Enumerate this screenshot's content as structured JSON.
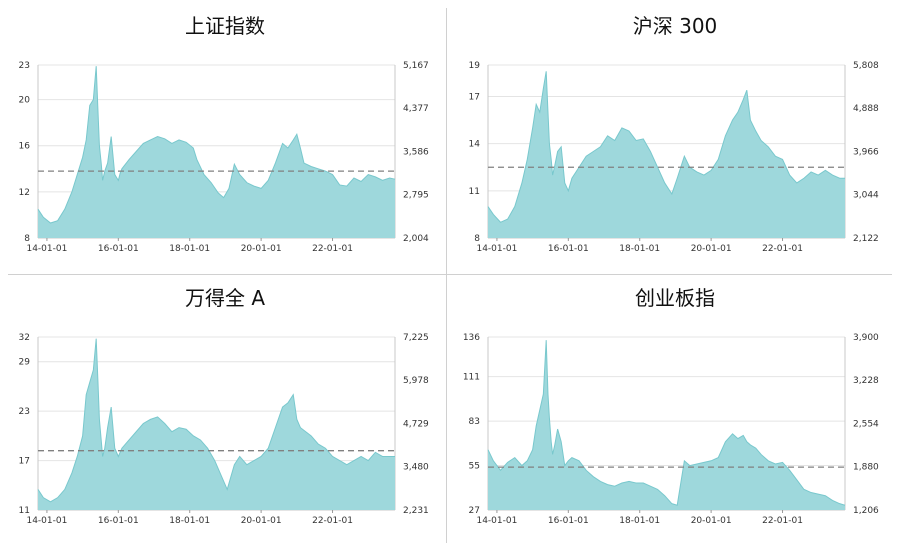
{
  "colors": {
    "area": "#9ed8dc",
    "line": "#79c8cd",
    "median": "#808080",
    "grid": "#e4e4e4"
  },
  "chart_data": [
    {
      "type": "area",
      "title": "上证指数",
      "x_ticks": [
        "14-01-01",
        "16-01-01",
        "18-01-01",
        "20-01-01",
        "22-01-01"
      ],
      "x_range": [
        2013.75,
        2023.75
      ],
      "ylim_left": [
        8,
        23
      ],
      "left_ticks": [
        "8",
        "12",
        "16",
        "20",
        "23"
      ],
      "ylim_right": [
        2004,
        5167
      ],
      "right_ticks": [
        "2,004",
        "2,795",
        "3,586",
        "4,377",
        "5,167"
      ],
      "median": 13.8,
      "x": [
        2013.75,
        2013.9,
        2014.1,
        2014.3,
        2014.5,
        2014.7,
        2014.85,
        2015.0,
        2015.1,
        2015.2,
        2015.3,
        2015.38,
        2015.43,
        2015.47,
        2015.52,
        2015.56,
        2015.62,
        2015.7,
        2015.8,
        2015.9,
        2016.0,
        2016.05,
        2016.1,
        2016.15,
        2016.3,
        2016.5,
        2016.7,
        2016.9,
        2017.1,
        2017.3,
        2017.5,
        2017.7,
        2017.9,
        2018.1,
        2018.2,
        2018.4,
        2018.6,
        2018.8,
        2018.95,
        2019.1,
        2019.25,
        2019.4,
        2019.6,
        2019.8,
        2020.0,
        2020.2,
        2020.4,
        2020.6,
        2020.75,
        2020.9,
        2021.0,
        2021.1,
        2021.2,
        2021.4,
        2021.6,
        2021.8,
        2022.0,
        2022.2,
        2022.4,
        2022.6,
        2022.8,
        2023.0,
        2023.2,
        2023.4,
        2023.6,
        2023.75
      ],
      "y": [
        10.5,
        9.8,
        9.3,
        9.5,
        10.5,
        12.0,
        13.5,
        15.0,
        16.5,
        19.5,
        20.0,
        22.9,
        19.0,
        16.0,
        14.5,
        13.0,
        13.8,
        14.5,
        16.8,
        13.5,
        13.0,
        13.6,
        14.0,
        14.2,
        14.8,
        15.5,
        16.2,
        16.5,
        16.8,
        16.6,
        16.2,
        16.5,
        16.3,
        15.8,
        14.8,
        13.5,
        12.8,
        11.9,
        11.5,
        12.3,
        14.4,
        13.5,
        12.8,
        12.5,
        12.3,
        13.0,
        14.5,
        16.2,
        15.8,
        16.5,
        17.0,
        15.8,
        14.5,
        14.2,
        14.0,
        13.8,
        13.5,
        12.6,
        12.5,
        13.2,
        12.9,
        13.5,
        13.3,
        13.0,
        13.2,
        13.1
      ]
    },
    {
      "type": "area",
      "title": "沪深 300",
      "x_ticks": [
        "14-01-01",
        "16-01-01",
        "18-01-01",
        "20-01-01",
        "22-01-01"
      ],
      "x_range": [
        2013.75,
        2023.75
      ],
      "ylim_left": [
        8,
        19
      ],
      "left_ticks": [
        "8",
        "11",
        "14",
        "17",
        "19"
      ],
      "ylim_right": [
        2122,
        5808
      ],
      "right_ticks": [
        "2,122",
        "3,044",
        "3,966",
        "4,888",
        "5,808"
      ],
      "median": 12.5,
      "x": [
        2013.75,
        2013.9,
        2014.1,
        2014.3,
        2014.5,
        2014.7,
        2014.85,
        2015.0,
        2015.1,
        2015.2,
        2015.3,
        2015.38,
        2015.43,
        2015.47,
        2015.52,
        2015.56,
        2015.62,
        2015.7,
        2015.8,
        2015.9,
        2016.0,
        2016.1,
        2016.3,
        2016.5,
        2016.7,
        2016.9,
        2017.1,
        2017.3,
        2017.5,
        2017.7,
        2017.9,
        2018.1,
        2018.3,
        2018.5,
        2018.7,
        2018.9,
        2019.05,
        2019.25,
        2019.4,
        2019.6,
        2019.8,
        2020.0,
        2020.2,
        2020.4,
        2020.6,
        2020.75,
        2020.9,
        2021.0,
        2021.1,
        2021.25,
        2021.4,
        2021.6,
        2021.8,
        2022.0,
        2022.2,
        2022.4,
        2022.6,
        2022.8,
        2023.0,
        2023.2,
        2023.4,
        2023.6,
        2023.75
      ],
      "y": [
        10.0,
        9.5,
        9.0,
        9.2,
        10.0,
        11.5,
        13.0,
        15.0,
        16.5,
        16.0,
        17.5,
        18.6,
        16.0,
        14.0,
        13.0,
        12.0,
        12.6,
        13.5,
        13.8,
        11.5,
        11.0,
        11.8,
        12.5,
        13.2,
        13.5,
        13.8,
        14.5,
        14.2,
        15.0,
        14.8,
        14.2,
        14.3,
        13.5,
        12.5,
        11.5,
        10.8,
        11.8,
        13.2,
        12.5,
        12.2,
        12.0,
        12.3,
        13.0,
        14.5,
        15.5,
        16.0,
        16.8,
        17.4,
        15.5,
        14.8,
        14.2,
        13.8,
        13.2,
        13.0,
        12.0,
        11.5,
        11.8,
        12.2,
        12.0,
        12.3,
        12.0,
        11.8,
        11.8
      ]
    },
    {
      "type": "area",
      "title": "万得全 A",
      "x_ticks": [
        "14-01-01",
        "16-01-01",
        "18-01-01",
        "20-01-01",
        "22-01-01"
      ],
      "x_range": [
        2013.75,
        2023.75
      ],
      "ylim_left": [
        11,
        32
      ],
      "left_ticks": [
        "11",
        "17",
        "23",
        "29",
        "32"
      ],
      "ylim_right": [
        2231,
        7225
      ],
      "right_ticks": [
        "2,231",
        "3,480",
        "4,729",
        "5,978",
        "7,225"
      ],
      "median": 18.2,
      "x": [
        2013.75,
        2013.9,
        2014.1,
        2014.3,
        2014.5,
        2014.7,
        2014.85,
        2015.0,
        2015.1,
        2015.2,
        2015.3,
        2015.38,
        2015.43,
        2015.47,
        2015.52,
        2015.56,
        2015.62,
        2015.7,
        2015.8,
        2015.9,
        2016.0,
        2016.1,
        2016.3,
        2016.5,
        2016.7,
        2016.9,
        2017.1,
        2017.3,
        2017.5,
        2017.7,
        2017.9,
        2018.1,
        2018.3,
        2018.5,
        2018.7,
        2018.9,
        2019.05,
        2019.25,
        2019.4,
        2019.6,
        2019.8,
        2020.0,
        2020.2,
        2020.4,
        2020.6,
        2020.75,
        2020.9,
        2021.0,
        2021.1,
        2021.25,
        2021.4,
        2021.6,
        2021.8,
        2022.0,
        2022.2,
        2022.4,
        2022.6,
        2022.8,
        2023.0,
        2023.2,
        2023.4,
        2023.6,
        2023.75
      ],
      "y": [
        13.5,
        12.5,
        12.0,
        12.5,
        13.5,
        15.5,
        17.5,
        20.0,
        25.0,
        26.5,
        28.0,
        31.8,
        26.5,
        22.0,
        19.5,
        17.5,
        18.5,
        21.0,
        23.5,
        18.5,
        17.5,
        18.5,
        19.5,
        20.5,
        21.5,
        22.0,
        22.3,
        21.5,
        20.5,
        21.0,
        20.8,
        20.0,
        19.5,
        18.5,
        17.0,
        15.0,
        13.5,
        16.5,
        17.5,
        16.5,
        17.0,
        17.5,
        18.5,
        21.0,
        23.5,
        24.0,
        25.0,
        22.0,
        21.0,
        20.5,
        20.0,
        19.0,
        18.5,
        17.5,
        17.0,
        16.5,
        17.0,
        17.5,
        17.0,
        18.0,
        17.5,
        17.5,
        17.5
      ]
    },
    {
      "type": "area",
      "title": "创业板指",
      "x_ticks": [
        "14-01-01",
        "16-01-01",
        "18-01-01",
        "20-01-01",
        "22-01-01"
      ],
      "x_range": [
        2013.75,
        2023.75
      ],
      "ylim_left": [
        27,
        136
      ],
      "left_ticks": [
        "27",
        "55",
        "83",
        "111",
        "136"
      ],
      "ylim_right": [
        1206,
        3900
      ],
      "right_ticks": [
        "1,206",
        "1,880",
        "2,554",
        "3,228",
        "3,900"
      ],
      "median": 54,
      "x": [
        2013.75,
        2013.9,
        2014.1,
        2014.3,
        2014.5,
        2014.7,
        2014.85,
        2015.0,
        2015.1,
        2015.2,
        2015.3,
        2015.38,
        2015.43,
        2015.47,
        2015.52,
        2015.56,
        2015.62,
        2015.7,
        2015.8,
        2015.9,
        2016.0,
        2016.1,
        2016.3,
        2016.5,
        2016.7,
        2016.9,
        2017.1,
        2017.3,
        2017.5,
        2017.7,
        2017.9,
        2018.1,
        2018.3,
        2018.5,
        2018.7,
        2018.9,
        2019.05,
        2019.25,
        2019.4,
        2019.6,
        2019.8,
        2020.0,
        2020.2,
        2020.4,
        2020.6,
        2020.75,
        2020.9,
        2021.0,
        2021.1,
        2021.25,
        2021.4,
        2021.6,
        2021.8,
        2022.0,
        2022.2,
        2022.4,
        2022.6,
        2022.8,
        2023.0,
        2023.2,
        2023.4,
        2023.6,
        2023.75
      ],
      "y": [
        65,
        58,
        52,
        57,
        60,
        55,
        58,
        65,
        80,
        90,
        100,
        134,
        100,
        85,
        70,
        62,
        68,
        78,
        70,
        55,
        58,
        60,
        58,
        52,
        48,
        45,
        43,
        42,
        44,
        45,
        44,
        44,
        42,
        40,
        36,
        31,
        30,
        58,
        55,
        56,
        57,
        58,
        60,
        70,
        75,
        72,
        74,
        70,
        68,
        66,
        62,
        58,
        56,
        57,
        52,
        46,
        40,
        38,
        37,
        36,
        33,
        31,
        30
      ]
    }
  ]
}
